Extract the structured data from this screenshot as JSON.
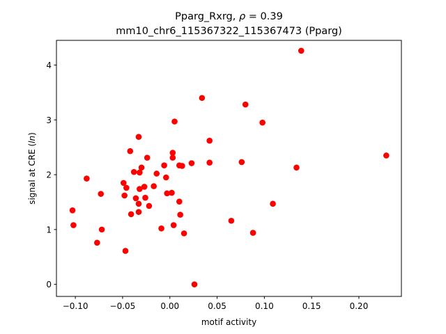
{
  "chart_data": {
    "type": "scatter",
    "title_line1_main": "Pparg_Rxrg, ",
    "title_line1_rho_symbol": "ρ",
    "title_line1_rho_value": " = 0.39",
    "title_line2": "mm10_chr6_115367322_115367473 (Pparg)",
    "xlabel": "motif activity",
    "ylabel_prefix": "signal at CRE (",
    "ylabel_ln": "ln",
    "ylabel_suffix": ")",
    "xlim": [
      -0.12,
      0.245
    ],
    "ylim": [
      -0.22,
      4.45
    ],
    "xticks": [
      -0.1,
      -0.05,
      0.0,
      0.05,
      0.1,
      0.15,
      0.2
    ],
    "xtick_labels": [
      "−0.10",
      "−0.05",
      "0.00",
      "0.05",
      "0.10",
      "0.15",
      "0.20"
    ],
    "yticks": [
      0,
      1,
      2,
      3,
      4
    ],
    "ytick_labels": [
      "0",
      "1",
      "2",
      "3",
      "4"
    ],
    "marker_color": "#ff0000",
    "grid": false,
    "points": [
      {
        "x": -0.103,
        "y": 1.35
      },
      {
        "x": -0.102,
        "y": 1.08
      },
      {
        "x": -0.088,
        "y": 1.93
      },
      {
        "x": -0.077,
        "y": 0.76
      },
      {
        "x": -0.073,
        "y": 1.65
      },
      {
        "x": -0.072,
        "y": 1.0
      },
      {
        "x": -0.049,
        "y": 1.85
      },
      {
        "x": -0.048,
        "y": 1.62
      },
      {
        "x": -0.047,
        "y": 0.61
      },
      {
        "x": -0.046,
        "y": 1.76
      },
      {
        "x": -0.042,
        "y": 2.43
      },
      {
        "x": -0.041,
        "y": 1.28
      },
      {
        "x": -0.038,
        "y": 2.05
      },
      {
        "x": -0.036,
        "y": 1.57
      },
      {
        "x": -0.033,
        "y": 2.69
      },
      {
        "x": -0.033,
        "y": 1.47
      },
      {
        "x": -0.033,
        "y": 1.32
      },
      {
        "x": -0.032,
        "y": 1.74
      },
      {
        "x": -0.032,
        "y": 2.04
      },
      {
        "x": -0.03,
        "y": 2.13
      },
      {
        "x": -0.027,
        "y": 1.78
      },
      {
        "x": -0.026,
        "y": 1.58
      },
      {
        "x": -0.024,
        "y": 2.31
      },
      {
        "x": -0.022,
        "y": 1.43
      },
      {
        "x": -0.017,
        "y": 1.79
      },
      {
        "x": -0.014,
        "y": 2.02
      },
      {
        "x": -0.009,
        "y": 1.02
      },
      {
        "x": -0.006,
        "y": 2.17
      },
      {
        "x": -0.004,
        "y": 1.95
      },
      {
        "x": -0.003,
        "y": 1.66
      },
      {
        "x": 0.002,
        "y": 1.67
      },
      {
        "x": 0.003,
        "y": 2.31
      },
      {
        "x": 0.003,
        "y": 2.4
      },
      {
        "x": 0.004,
        "y": 1.08
      },
      {
        "x": 0.005,
        "y": 2.97
      },
      {
        "x": 0.01,
        "y": 1.51
      },
      {
        "x": 0.01,
        "y": 2.17
      },
      {
        "x": 0.011,
        "y": 1.27
      },
      {
        "x": 0.013,
        "y": 2.16
      },
      {
        "x": 0.015,
        "y": 0.93
      },
      {
        "x": 0.023,
        "y": 2.21
      },
      {
        "x": 0.026,
        "y": 0.0
      },
      {
        "x": 0.034,
        "y": 3.4
      },
      {
        "x": 0.042,
        "y": 2.62
      },
      {
        "x": 0.042,
        "y": 2.22
      },
      {
        "x": 0.065,
        "y": 1.16
      },
      {
        "x": 0.076,
        "y": 2.23
      },
      {
        "x": 0.08,
        "y": 3.28
      },
      {
        "x": 0.088,
        "y": 0.94
      },
      {
        "x": 0.098,
        "y": 2.95
      },
      {
        "x": 0.109,
        "y": 1.47
      },
      {
        "x": 0.134,
        "y": 2.13
      },
      {
        "x": 0.139,
        "y": 4.26
      },
      {
        "x": 0.229,
        "y": 2.35
      }
    ]
  }
}
